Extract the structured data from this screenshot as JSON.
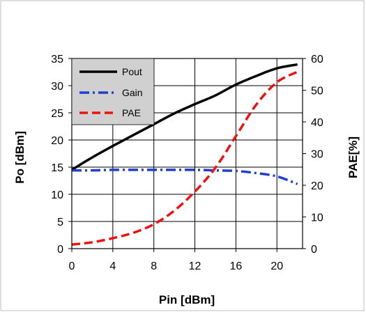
{
  "chart_data": {
    "type": "line",
    "xlabel": "Pin [dBm]",
    "ylabel_left": "Po [dBm]",
    "ylabel_right": "PAE[%]",
    "xlim": [
      0,
      22.5
    ],
    "ylim_left": [
      0,
      35
    ],
    "ylim_right": [
      0,
      60
    ],
    "x_ticks": [
      0,
      4,
      8,
      12,
      16,
      20
    ],
    "y_ticks_left": [
      0,
      5,
      10,
      15,
      20,
      25,
      30,
      35
    ],
    "y_ticks_right": [
      0,
      10,
      20,
      30,
      40,
      50,
      60
    ],
    "grid": true,
    "legend_position": "top-left",
    "series": [
      {
        "name": "Pout",
        "axis": "left",
        "color": "#000000",
        "style": "solid",
        "x": [
          0,
          2,
          4,
          6,
          8,
          10,
          12,
          14,
          16,
          18,
          20,
          22
        ],
        "y": [
          14.5,
          16.8,
          18.9,
          20.9,
          22.9,
          24.9,
          26.6,
          28.2,
          30.2,
          31.8,
          33.2,
          33.9
        ]
      },
      {
        "name": "Gain",
        "axis": "left",
        "color": "#1f3fcf",
        "style": "dashdot",
        "x": [
          0,
          2,
          4,
          6,
          8,
          10,
          12,
          14,
          16,
          18,
          20,
          22
        ],
        "y": [
          14.4,
          14.4,
          14.5,
          14.5,
          14.5,
          14.5,
          14.5,
          14.4,
          14.3,
          13.9,
          13.3,
          11.9
        ]
      },
      {
        "name": "PAE",
        "axis": "right",
        "color": "#ee1111",
        "style": "dashed",
        "x": [
          0,
          2,
          4,
          6,
          8,
          10,
          12,
          14,
          16,
          18,
          20,
          22
        ],
        "y": [
          1.3,
          2.0,
          3.3,
          5.0,
          7.7,
          12.0,
          18.0,
          25.5,
          35.5,
          45.5,
          52.5,
          55.8
        ]
      }
    ]
  }
}
